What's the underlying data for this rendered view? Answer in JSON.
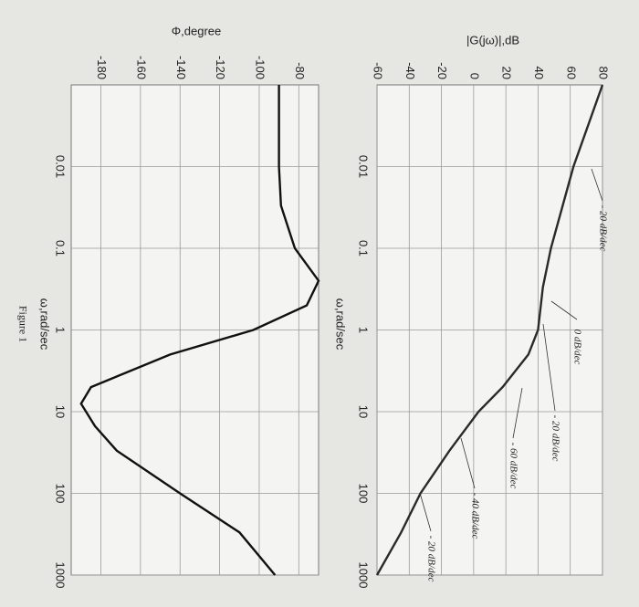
{
  "chart_data": [
    {
      "type": "line",
      "ylabel": "|G(jω)|,dB",
      "xlabel": "ω,rad/sec",
      "log_x": true,
      "grid": true,
      "color": "#2a2a2a",
      "x": [
        0.001,
        0.01,
        0.1,
        0.3,
        1,
        2,
        5,
        10,
        30,
        100,
        300,
        1000
      ],
      "values": [
        80,
        62,
        48,
        43,
        40,
        34,
        18,
        3,
        -15,
        -33,
        -45,
        -60
      ],
      "xlim": [
        0.001,
        1000
      ],
      "xticks": [
        0.01,
        0.1,
        1,
        10,
        100,
        1000
      ],
      "ylim": [
        -60,
        80
      ],
      "yticks": [
        -60,
        -40,
        -20,
        0,
        20,
        40,
        60,
        80
      ],
      "annotations": [
        "- 20 dB/dec",
        "0 dB/dec",
        "- 20 dB/dec",
        "- 60 dB/dec",
        "- 40 dB/dec",
        "- 20 dB/dec"
      ]
    },
    {
      "type": "line",
      "ylabel": "Φ,degree",
      "xlabel": "ω,rad/sec",
      "caption": "Figure 1",
      "log_x": true,
      "grid": true,
      "color": "#111111",
      "x": [
        0.001,
        0.01,
        0.03,
        0.1,
        0.25,
        0.5,
        1,
        2,
        5,
        8,
        15,
        30,
        100,
        300,
        1000
      ],
      "values": [
        -90,
        -90,
        -89,
        -82,
        -70,
        -76,
        -103,
        -145,
        -185,
        -190,
        -183,
        -172,
        -140,
        -110,
        -92
      ],
      "xlim": [
        0.001,
        1000
      ],
      "xticks": [
        0.01,
        0.1,
        1,
        10,
        100,
        1000
      ],
      "ylim": [
        -195,
        -70
      ],
      "yticks": [
        -180,
        -160,
        -140,
        -120,
        -100,
        -80
      ]
    }
  ]
}
